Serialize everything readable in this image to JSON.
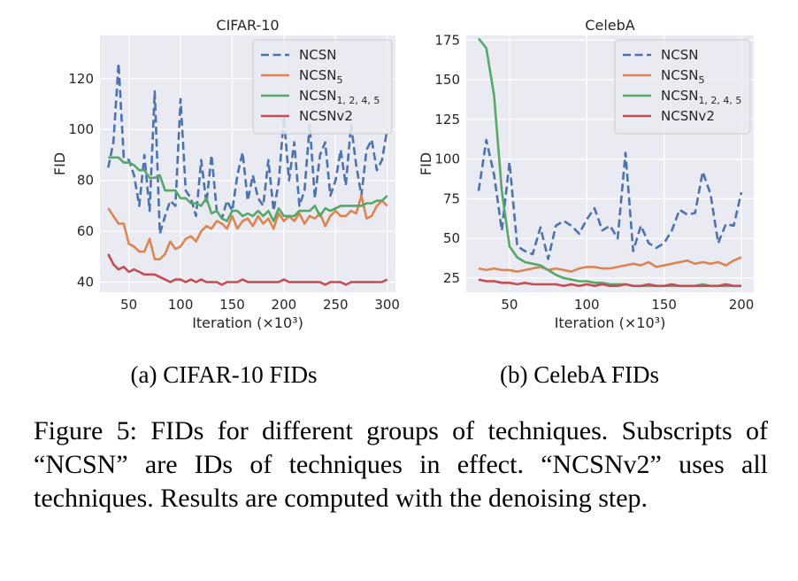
{
  "chart_data": [
    {
      "type": "line",
      "title": "CIFAR-10",
      "xlabel": "Iteration (×10³)",
      "ylabel": "FID",
      "xlim": [
        22,
        308
      ],
      "ylim": [
        36,
        137
      ],
      "xticks": [
        50,
        100,
        150,
        200,
        250,
        300
      ],
      "yticks": [
        40,
        60,
        80,
        100,
        120
      ],
      "grid": true,
      "legend_position": "top-right",
      "x": [
        30,
        35,
        40,
        45,
        50,
        55,
        60,
        65,
        70,
        75,
        80,
        85,
        90,
        95,
        100,
        105,
        110,
        115,
        120,
        125,
        130,
        135,
        140,
        145,
        150,
        155,
        160,
        165,
        170,
        175,
        180,
        185,
        190,
        195,
        200,
        205,
        210,
        215,
        220,
        225,
        230,
        235,
        240,
        245,
        250,
        255,
        260,
        265,
        270,
        275,
        280,
        285,
        290,
        295,
        300
      ],
      "series": [
        {
          "name": "NCSN",
          "color": "#4c72b0",
          "dash": true,
          "values": [
            85,
            95,
            126,
            89,
            88,
            82,
            70,
            90,
            68,
            115,
            59,
            66,
            72,
            70,
            112,
            76,
            73,
            66,
            88,
            71,
            90,
            68,
            65,
            72,
            68,
            82,
            91,
            72,
            82,
            73,
            70,
            88,
            68,
            79,
            105,
            80,
            95,
            70,
            76,
            102,
            73,
            90,
            95,
            74,
            80,
            92,
            78,
            102,
            86,
            74,
            92,
            96,
            84,
            88,
            100
          ]
        },
        {
          "name": "NCSN",
          "sub": "5",
          "color": "#dd8452",
          "values": [
            69,
            66,
            63,
            63,
            55,
            54,
            52,
            52,
            57,
            49,
            49,
            51,
            56,
            53,
            54,
            57,
            58,
            56,
            60,
            62,
            61,
            64,
            63,
            61,
            66,
            61,
            64,
            65,
            62,
            66,
            63,
            65,
            61,
            67,
            64,
            66,
            64,
            67,
            63,
            66,
            65,
            67,
            62,
            66,
            68,
            66,
            66,
            68,
            67,
            74,
            65,
            66,
            70,
            72,
            70
          ]
        },
        {
          "name": "NCSN",
          "sub": "1, 2, 4, 5",
          "color": "#55a868",
          "values": [
            89,
            89,
            89,
            87,
            87,
            86,
            84,
            84,
            81,
            81,
            82,
            76,
            76,
            76,
            73,
            73,
            71,
            71,
            70,
            73,
            67,
            68,
            65,
            64,
            68,
            68,
            66,
            67,
            66,
            68,
            66,
            68,
            64,
            69,
            66,
            66,
            66,
            68,
            68,
            68,
            70,
            66,
            69,
            68,
            69,
            70,
            70,
            70,
            70,
            70,
            71,
            71,
            72,
            72,
            74
          ]
        },
        {
          "name": "NCSNv2",
          "color": "#c44e52",
          "values": [
            51,
            47,
            45,
            46,
            44,
            45,
            44,
            43,
            43,
            43,
            42,
            41,
            40,
            41,
            41,
            40,
            41,
            40,
            41,
            40,
            40,
            40,
            39,
            40,
            40,
            40,
            41,
            40,
            40,
            40,
            40,
            40,
            40,
            40,
            41,
            40,
            40,
            40,
            40,
            40,
            40,
            40,
            39,
            40,
            40,
            40,
            39,
            40,
            40,
            40,
            40,
            40,
            40,
            40,
            41
          ]
        }
      ]
    },
    {
      "type": "line",
      "title": "CelebA",
      "xlabel": "Iteration (×10³)",
      "ylabel": "FID",
      "xlim": [
        22,
        208
      ],
      "ylim": [
        16,
        178
      ],
      "xticks": [
        50,
        100,
        150,
        200
      ],
      "yticks": [
        25,
        50,
        75,
        100,
        125,
        150,
        175
      ],
      "grid": true,
      "legend_position": "top-right",
      "x": [
        30,
        35,
        40,
        45,
        50,
        55,
        60,
        65,
        70,
        75,
        80,
        85,
        90,
        95,
        100,
        105,
        110,
        115,
        120,
        125,
        130,
        135,
        140,
        145,
        150,
        155,
        160,
        165,
        170,
        175,
        180,
        185,
        190,
        195,
        200
      ],
      "series": [
        {
          "name": "NCSN",
          "color": "#4c72b0",
          "dash": true,
          "values": [
            80,
            112,
            90,
            55,
            98,
            45,
            42,
            40,
            57,
            37,
            58,
            61,
            58,
            53,
            62,
            69,
            55,
            58,
            50,
            104,
            42,
            58,
            47,
            44,
            47,
            55,
            68,
            65,
            66,
            92,
            78,
            47,
            59,
            58,
            79
          ]
        },
        {
          "name": "NCSN",
          "sub": "5",
          "color": "#dd8452",
          "values": [
            31,
            30,
            31,
            30,
            30,
            29,
            30,
            31,
            32,
            30,
            31,
            30,
            29,
            31,
            32,
            32,
            31,
            31,
            32,
            33,
            34,
            33,
            35,
            32,
            33,
            34,
            35,
            36,
            34,
            35,
            34,
            35,
            33,
            36,
            38
          ]
        },
        {
          "name": "NCSN",
          "sub": "1, 2, 4, 5",
          "color": "#55a868",
          "values": [
            176,
            170,
            140,
            80,
            45,
            38,
            35,
            34,
            33,
            30,
            27,
            25,
            24,
            23,
            23,
            22,
            22,
            21,
            21,
            21,
            20,
            20,
            20,
            20,
            20,
            20,
            20,
            20,
            20,
            21,
            20,
            20,
            20,
            20,
            20
          ]
        },
        {
          "name": "NCSNv2",
          "color": "#c44e52",
          "values": [
            24,
            23,
            23,
            22,
            22,
            21,
            22,
            21,
            21,
            21,
            21,
            20,
            21,
            20,
            21,
            20,
            21,
            20,
            20,
            21,
            20,
            20,
            21,
            20,
            20,
            21,
            20,
            20,
            20,
            20,
            20,
            20,
            21,
            20,
            20
          ]
        }
      ]
    }
  ],
  "subcaptions": [
    "(a) CIFAR-10 FIDs",
    "(b) CelebA FIDs"
  ],
  "caption": "Figure 5: FIDs for different groups of techniques. Subscripts of “NCSN” are IDs of techniques in effect. “NCSNv2” uses all techniques. Results are computed with the denoising step."
}
